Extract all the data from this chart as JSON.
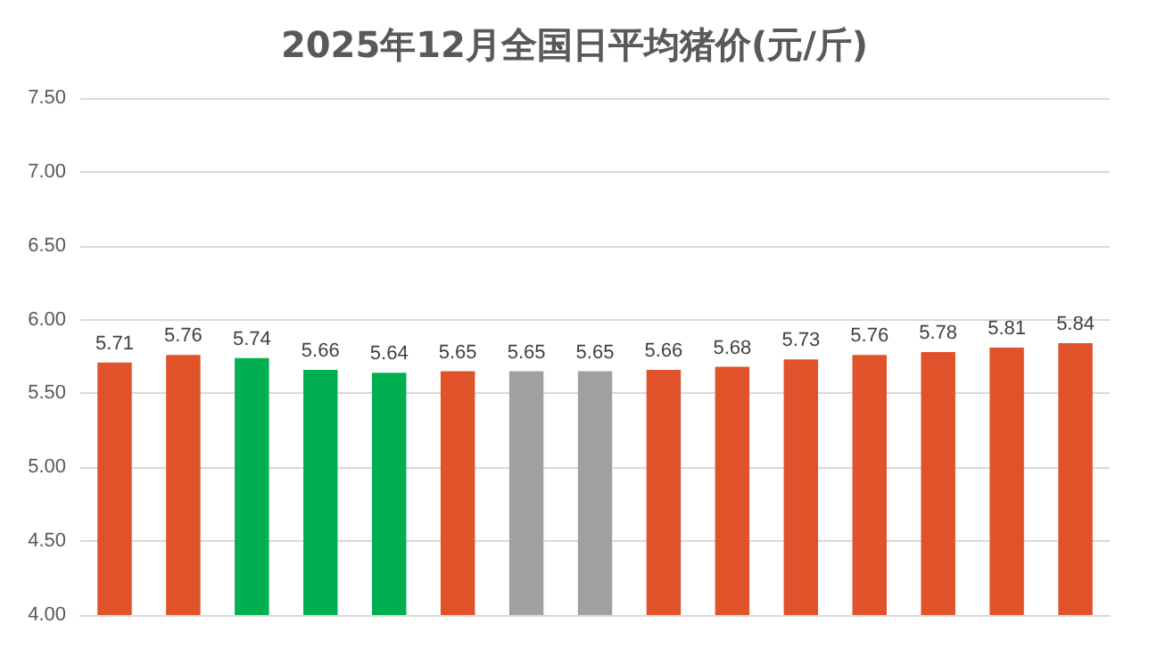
{
  "chart_data": {
    "type": "bar",
    "title": "2025年12月全国日平均猪价(元/斤)",
    "categories": [
      null,
      null,
      null,
      null,
      null,
      null,
      null,
      null,
      null,
      null,
      null,
      null,
      null,
      null,
      null
    ],
    "values": [
      5.71,
      5.76,
      5.74,
      5.66,
      5.64,
      5.65,
      5.65,
      5.65,
      5.66,
      5.68,
      5.73,
      5.76,
      5.78,
      5.81,
      5.84
    ],
    "colors": [
      "#e0522a",
      "#e0522a",
      "#00b050",
      "#00b050",
      "#00b050",
      "#e0522a",
      "#a0a0a0",
      "#a0a0a0",
      "#e0522a",
      "#e0522a",
      "#e0522a",
      "#e0522a",
      "#e0522a",
      "#e0522a",
      "#e0522a"
    ],
    "ylim": [
      4,
      7.5
    ],
    "yticks": [
      {
        "value": 4,
        "label": "4.00"
      },
      {
        "value": 4.5,
        "label": "4.50"
      },
      {
        "value": 5,
        "label": "5.00"
      },
      {
        "value": 5.5,
        "label": "5.50"
      },
      {
        "value": 6,
        "label": "6.00"
      },
      {
        "value": 6.5,
        "label": "6.50"
      },
      {
        "value": 7,
        "label": "7.00"
      },
      {
        "value": 7.5,
        "label": "7.50"
      }
    ],
    "grid": "y",
    "data_labels": true
  }
}
